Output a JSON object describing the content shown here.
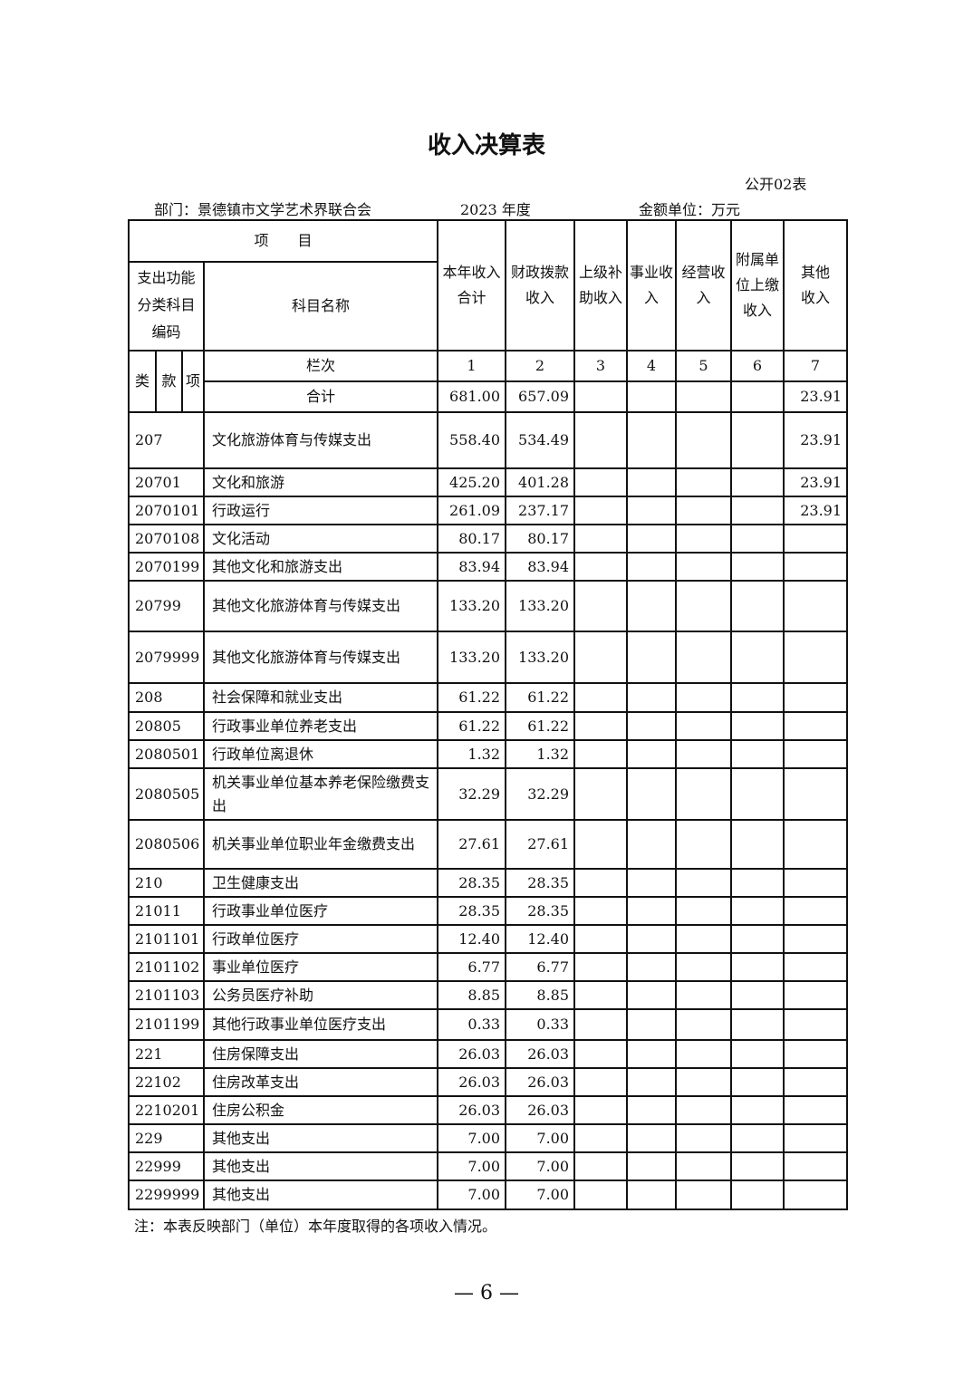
{
  "title": "收入决算表",
  "table_tag": "公开02表",
  "department": "部门：景德镇市文学艺术界联合会",
  "year": "2023 年度",
  "unit": "金额单位：万元",
  "header": {
    "item": "项　　目",
    "code": "支出功能分类科目编码",
    "name": "科目名称",
    "cols": [
      "本年收入合计",
      "财政拨款收入",
      "上级补助收入",
      "事业收入",
      "经营收入",
      "附属单位上缴收入",
      "其他收入"
    ],
    "lei": "类",
    "kuan": "款",
    "xiang": "项",
    "lanci": "栏次",
    "nums": [
      "1",
      "2",
      "3",
      "4",
      "5",
      "6",
      "7"
    ]
  },
  "total": {
    "label": "合计",
    "values": [
      "681.00",
      "657.09",
      "",
      "",
      "",
      "",
      "23.91"
    ]
  },
  "rows": [
    {
      "code": "207",
      "name": "文化旅游体育与传媒支出",
      "values": [
        "558.40",
        "534.49",
        "",
        "",
        "",
        "",
        "23.91"
      ]
    },
    {
      "code": "20701",
      "name": "文化和旅游",
      "values": [
        "425.20",
        "401.28",
        "",
        "",
        "",
        "",
        "23.91"
      ]
    },
    {
      "code": "2070101",
      "name": "行政运行",
      "values": [
        "261.09",
        "237.17",
        "",
        "",
        "",
        "",
        "23.91"
      ]
    },
    {
      "code": "2070108",
      "name": "文化活动",
      "values": [
        "80.17",
        "80.17",
        "",
        "",
        "",
        "",
        ""
      ]
    },
    {
      "code": "2070199",
      "name": "其他文化和旅游支出",
      "values": [
        "83.94",
        "83.94",
        "",
        "",
        "",
        "",
        ""
      ]
    },
    {
      "code": "20799",
      "name": "其他文化旅游体育与传媒支出",
      "values": [
        "133.20",
        "133.20",
        "",
        "",
        "",
        "",
        ""
      ]
    },
    {
      "code": "2079999",
      "name": "其他文化旅游体育与传媒支出",
      "values": [
        "133.20",
        "133.20",
        "",
        "",
        "",
        "",
        ""
      ]
    },
    {
      "code": "208",
      "name": "社会保障和就业支出",
      "values": [
        "61.22",
        "61.22",
        "",
        "",
        "",
        "",
        ""
      ]
    },
    {
      "code": "20805",
      "name": "行政事业单位养老支出",
      "values": [
        "61.22",
        "61.22",
        "",
        "",
        "",
        "",
        ""
      ]
    },
    {
      "code": "2080501",
      "name": "行政单位离退休",
      "values": [
        "1.32",
        "1.32",
        "",
        "",
        "",
        "",
        ""
      ]
    },
    {
      "code": "2080505",
      "name": "机关事业单位基本养老保险缴费支出",
      "values": [
        "32.29",
        "32.29",
        "",
        "",
        "",
        "",
        ""
      ]
    },
    {
      "code": "2080506",
      "name": "机关事业单位职业年金缴费支出",
      "values": [
        "27.61",
        "27.61",
        "",
        "",
        "",
        "",
        ""
      ]
    },
    {
      "code": "210",
      "name": "卫生健康支出",
      "values": [
        "28.35",
        "28.35",
        "",
        "",
        "",
        "",
        ""
      ]
    },
    {
      "code": "21011",
      "name": "行政事业单位医疗",
      "values": [
        "28.35",
        "28.35",
        "",
        "",
        "",
        "",
        ""
      ]
    },
    {
      "code": "2101101",
      "name": "行政单位医疗",
      "values": [
        "12.40",
        "12.40",
        "",
        "",
        "",
        "",
        ""
      ]
    },
    {
      "code": "2101102",
      "name": "事业单位医疗",
      "values": [
        "6.77",
        "6.77",
        "",
        "",
        "",
        "",
        ""
      ]
    },
    {
      "code": "2101103",
      "name": "公务员医疗补助",
      "values": [
        "8.85",
        "8.85",
        "",
        "",
        "",
        "",
        ""
      ]
    },
    {
      "code": "2101199",
      "name": "其他行政事业单位医疗支出",
      "values": [
        "0.33",
        "0.33",
        "",
        "",
        "",
        "",
        ""
      ]
    },
    {
      "code": "221",
      "name": "住房保障支出",
      "values": [
        "26.03",
        "26.03",
        "",
        "",
        "",
        "",
        ""
      ]
    },
    {
      "code": "22102",
      "name": "住房改革支出",
      "values": [
        "26.03",
        "26.03",
        "",
        "",
        "",
        "",
        ""
      ]
    },
    {
      "code": "2210201",
      "name": "住房公积金",
      "values": [
        "26.03",
        "26.03",
        "",
        "",
        "",
        "",
        ""
      ]
    },
    {
      "code": "229",
      "name": "其他支出",
      "values": [
        "7.00",
        "7.00",
        "",
        "",
        "",
        "",
        ""
      ]
    },
    {
      "code": "22999",
      "name": "其他支出",
      "values": [
        "7.00",
        "7.00",
        "",
        "",
        "",
        "",
        ""
      ]
    },
    {
      "code": "2299999",
      "name": "其他支出",
      "values": [
        "7.00",
        "7.00",
        "",
        "",
        "",
        "",
        ""
      ]
    }
  ],
  "note": "注：本表反映部门（单位）本年度取得的各项收入情况。",
  "page_number": "— 6 —"
}
